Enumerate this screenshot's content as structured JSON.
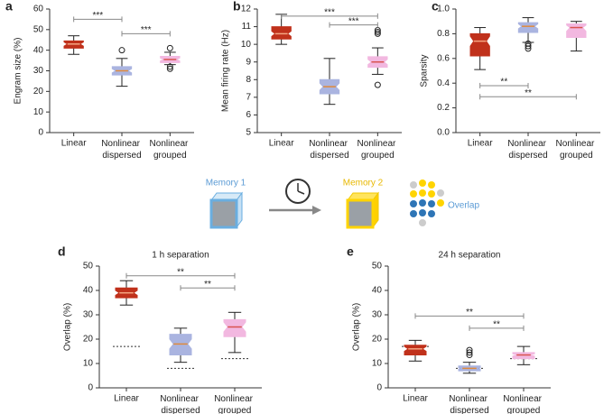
{
  "chart_data": [
    {
      "type": "boxplot",
      "label": "a",
      "ylabel": "Engram size (%)",
      "categories": [
        "Linear",
        "Nonlinear dispersed",
        "Nonlinear grouped"
      ],
      "colors": [
        "#c0311b",
        "#aab4e0",
        "#f2b8e0"
      ],
      "median_colors": [
        "#f4a582",
        "#e08a3c",
        "#d9534f"
      ],
      "boxes": [
        {
          "whislo": 38,
          "q1": 41,
          "med": 43,
          "q3": 44.5,
          "whishi": 47,
          "notch": [
            42,
            44
          ],
          "fliers": []
        },
        {
          "whislo": 22.5,
          "q1": 28,
          "med": 30,
          "q3": 32,
          "whishi": 36,
          "notch": [
            29,
            31
          ],
          "fliers": [
            40
          ]
        },
        {
          "whislo": 33,
          "q1": 34,
          "med": 35.5,
          "q3": 37,
          "whishi": 39,
          "notch": [
            34.8,
            36.2
          ],
          "fliers": [
            31,
            32,
            41
          ]
        }
      ],
      "annotations": [
        {
          "text": "***",
          "from": 0,
          "to": 1,
          "y": 55
        },
        {
          "text": "***",
          "from": 1,
          "to": 2,
          "y": 48
        }
      ],
      "ylim": [
        0,
        60
      ],
      "yticks": [
        0,
        10,
        20,
        30,
        40,
        50,
        60
      ]
    },
    {
      "type": "boxplot",
      "label": "b",
      "ylabel": "Mean firing rate (Hz)",
      "categories": [
        "Linear",
        "Nonlinear dispersed",
        "Nonlinear grouped"
      ],
      "colors": [
        "#c0311b",
        "#aab4e0",
        "#f2b8e0"
      ],
      "median_colors": [
        "#f4a582",
        "#e08a3c",
        "#d9534f"
      ],
      "boxes": [
        {
          "whislo": 10,
          "q1": 10.3,
          "med": 10.6,
          "q3": 11,
          "whishi": 11.7,
          "notch": [
            10.45,
            10.75
          ],
          "fliers": []
        },
        {
          "whislo": 6.6,
          "q1": 7.2,
          "med": 7.6,
          "q3": 8,
          "whishi": 9.2,
          "notch": [
            7.4,
            7.8
          ],
          "fliers": []
        },
        {
          "whislo": 8.3,
          "q1": 8.7,
          "med": 9,
          "q3": 9.3,
          "whishi": 9.8,
          "notch": [
            8.85,
            9.15
          ],
          "fliers": [
            7.7,
            10.6,
            10.7,
            10.8
          ]
        }
      ],
      "annotations": [
        {
          "text": "***",
          "from": 0,
          "to": 2,
          "y": 11.6
        },
        {
          "text": "***",
          "from": 1,
          "to": 2,
          "y": 11.1
        }
      ],
      "ylim": [
        5,
        12
      ],
      "yticks": [
        5,
        6,
        7,
        8,
        9,
        10,
        11,
        12
      ]
    },
    {
      "type": "boxplot",
      "label": "c",
      "ylabel": "Sparsity",
      "categories": [
        "Linear",
        "Nonlinear dispersed",
        "Nonlinear grouped"
      ],
      "colors": [
        "#c0311b",
        "#aab4e0",
        "#f2b8e0"
      ],
      "median_colors": [
        "#f4a582",
        "#e08a3c",
        "#d9534f"
      ],
      "boxes": [
        {
          "whislo": 0.51,
          "q1": 0.62,
          "med": 0.74,
          "q3": 0.8,
          "whishi": 0.85,
          "notch": [
            0.7,
            0.78
          ],
          "fliers": []
        },
        {
          "whislo": 0.73,
          "q1": 0.81,
          "med": 0.86,
          "q3": 0.89,
          "whishi": 0.93,
          "notch": [
            0.84,
            0.88
          ],
          "fliers": [
            0.68,
            0.7,
            0.72
          ]
        },
        {
          "whislo": 0.66,
          "q1": 0.77,
          "med": 0.85,
          "q3": 0.88,
          "whishi": 0.9,
          "notch": [
            0.82,
            0.87
          ],
          "fliers": []
        }
      ],
      "annotations": [
        {
          "text": "**",
          "from": 0,
          "to": 1,
          "y": 0.38
        },
        {
          "text": "**",
          "from": 0,
          "to": 2,
          "y": 0.29
        }
      ],
      "ylim": [
        0,
        1
      ],
      "yticks": [
        {
          "value": 0,
          "label": "0.0"
        },
        {
          "value": 0.2,
          "label": "0.2"
        },
        {
          "value": 0.4,
          "label": "0.4"
        },
        {
          "value": 0.6,
          "label": "0.6"
        },
        {
          "value": 0.8,
          "label": "0.8"
        },
        {
          "value": 1,
          "label": "1.0"
        }
      ]
    },
    {
      "type": "boxplot",
      "label": "d",
      "title": "1 h separation",
      "ylabel": "Overlap (%)",
      "categories": [
        "Linear",
        "Nonlinear dispersed",
        "Nonlinear grouped"
      ],
      "colors": [
        "#c0311b",
        "#aab4e0",
        "#f2b8e0"
      ],
      "median_colors": [
        "#f4a582",
        "#e08a3c",
        "#d9534f"
      ],
      "boxes": [
        {
          "whislo": 34,
          "q1": 37,
          "med": 39,
          "q3": 41,
          "whishi": 44,
          "notch": [
            38,
            40
          ],
          "fliers": []
        },
        {
          "whislo": 10.5,
          "q1": 13.5,
          "med": 18,
          "q3": 22,
          "whishi": 24.5,
          "notch": [
            16,
            20
          ],
          "fliers": []
        },
        {
          "whislo": 14.5,
          "q1": 21,
          "med": 25,
          "q3": 28,
          "whishi": 31,
          "notch": [
            23,
            27
          ],
          "fliers": []
        }
      ],
      "dashed_values": [
        17,
        8,
        12
      ],
      "annotations": [
        {
          "text": "**",
          "from": 0,
          "to": 2,
          "y": 46
        },
        {
          "text": "**",
          "from": 1,
          "to": 2,
          "y": 41
        }
      ],
      "ylim": [
        0,
        50
      ],
      "yticks": [
        0,
        10,
        20,
        30,
        40,
        50
      ]
    },
    {
      "type": "boxplot",
      "label": "e",
      "title": "24 h separation",
      "ylabel": "Overlap (%)",
      "categories": [
        "Linear",
        "Nonlinear dispersed",
        "Nonlinear grouped"
      ],
      "colors": [
        "#c0311b",
        "#aab4e0",
        "#f2b8e0"
      ],
      "median_colors": [
        "#f4a582",
        "#e08a3c",
        "#d9534f"
      ],
      "boxes": [
        {
          "whislo": 11,
          "q1": 13.5,
          "med": 16,
          "q3": 17.5,
          "whishi": 19.5,
          "notch": [
            15,
            17
          ],
          "fliers": []
        },
        {
          "whislo": 6,
          "q1": 7,
          "med": 8,
          "q3": 9,
          "whishi": 10.5,
          "notch": [
            7.7,
            8.3
          ],
          "fliers": [
            13.5,
            14.5,
            15.5
          ]
        },
        {
          "whislo": 9.5,
          "q1": 12,
          "med": 13.5,
          "q3": 14.5,
          "whishi": 17,
          "notch": [
            13,
            14
          ],
          "fliers": []
        }
      ],
      "dashed_values": [
        17,
        8,
        12
      ],
      "annotations": [
        {
          "text": "**",
          "from": 0,
          "to": 2,
          "y": 29.5
        },
        {
          "text": "**",
          "from": 1,
          "to": 2,
          "y": 24.5
        }
      ],
      "ylim": [
        0,
        50
      ],
      "yticks": [
        0,
        10,
        20,
        30,
        40,
        50
      ]
    }
  ],
  "diagram": {
    "memory1": "Memory 1",
    "memory2": "Memory 2",
    "overlap": "Overlap"
  }
}
